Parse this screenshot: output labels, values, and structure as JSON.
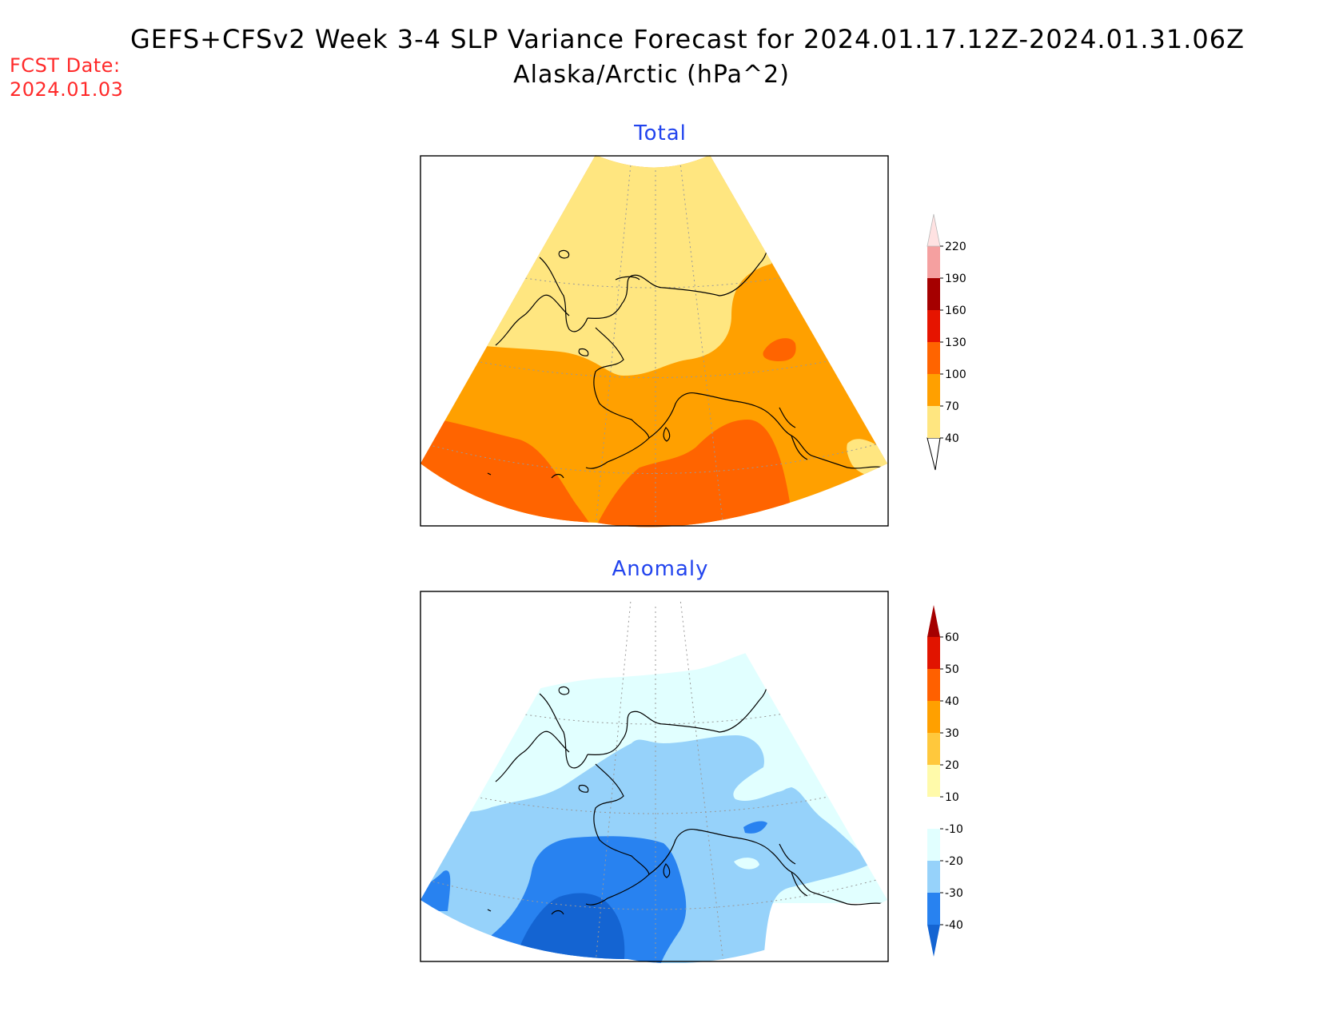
{
  "title": {
    "line1": "GEFS+CFSv2 Week 3-4 SLP Variance Forecast for 2024.01.17.12Z-2024.01.31.06Z",
    "line2": "Alaska/Arctic (hPa^2)"
  },
  "forecast_date": {
    "label": "FCST Date:",
    "value": "2024.01.03"
  },
  "panels": [
    {
      "title": "Total"
    },
    {
      "title": "Anomaly"
    }
  ],
  "colors": {
    "total": {
      "c40": "#ffe680",
      "c70": "#ffa000",
      "c100": "#ff6400",
      "c130": "#e61400",
      "c160": "#a50000",
      "c190": "#f5a0a0",
      "c220": "#ffe2e2"
    },
    "anomaly": {
      "cm40": "#1464d2",
      "cm30": "#2882f0",
      "cm20": "#96d2fa",
      "cm10": "#e1ffff",
      "c0": "#ffffff",
      "c10": "#fffaaa",
      "c20": "#ffc83c",
      "c30": "#ffa000",
      "c40": "#ff6000",
      "c50": "#e11400",
      "c60": "#a50000"
    }
  },
  "chart_data": [
    {
      "type": "heatmap",
      "title": "Total",
      "units": "hPa^2",
      "colorbar_levels": [
        40,
        70,
        100,
        130,
        160,
        190,
        220
      ],
      "colorbar_labels": [
        "40",
        "70",
        "100",
        "130",
        "160",
        "190",
        "220"
      ]
    },
    {
      "type": "heatmap",
      "title": "Anomaly",
      "units": "hPa^2",
      "colorbar_levels": [
        -40,
        -30,
        -20,
        -10,
        10,
        20,
        30,
        40,
        50,
        60
      ],
      "colorbar_labels": [
        "-40",
        "-30",
        "-20",
        "-10",
        "10",
        "20",
        "30",
        "40",
        "50",
        "60"
      ]
    }
  ]
}
